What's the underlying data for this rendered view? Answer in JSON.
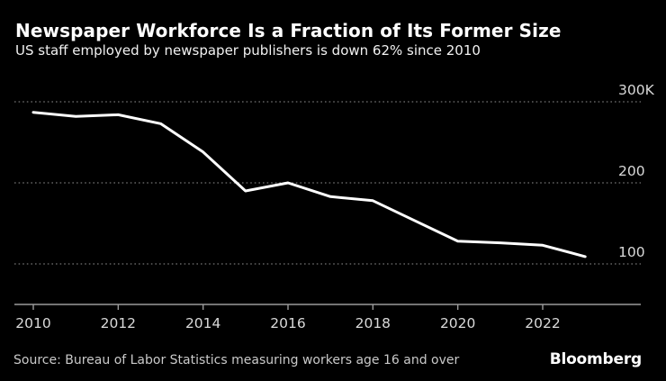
{
  "header": {
    "title": "Newspaper Workforce Is a Fraction of Its Former Size",
    "subtitle": "US staff employed by newspaper publishers is down 62% since 2010"
  },
  "footer": {
    "source": "Source: Bureau of Labor Statistics measuring workers age 16 and over",
    "brand": "Bloomberg"
  },
  "colors": {
    "background": "#000000",
    "line": "#ffffff",
    "grid": "#616161",
    "axis": "#9b9b9b",
    "tick_label": "#d9d9d9"
  },
  "chart_data": {
    "type": "line",
    "title": "Newspaper Workforce Is a Fraction of Its Former Size",
    "subtitle": "US staff employed by newspaper publishers is down 62% since 2010",
    "series": [
      {
        "name": "US staff employed by newspaper publishers (thousands)",
        "x": [
          2010,
          2011,
          2012,
          2013,
          2014,
          2015,
          2016,
          2017,
          2018,
          2019,
          2020,
          2021,
          2022,
          2023
        ],
        "values": [
          287,
          282,
          284,
          273,
          238,
          190,
          200,
          183,
          178,
          153,
          128,
          126,
          123,
          109
        ]
      }
    ],
    "values_unit": "K",
    "x_ticks": [
      "2010",
      "2012",
      "2014",
      "2016",
      "2018",
      "2020",
      "2022"
    ],
    "y_ticks": [
      {
        "value": 300,
        "label": "300K"
      },
      {
        "value": 200,
        "label": "200"
      },
      {
        "value": 100,
        "label": "100"
      }
    ],
    "grid": "horizontal dotted gridlines at labeled y values",
    "legend_position": "none",
    "line_color": "#ffffff",
    "line_width": 3
  }
}
